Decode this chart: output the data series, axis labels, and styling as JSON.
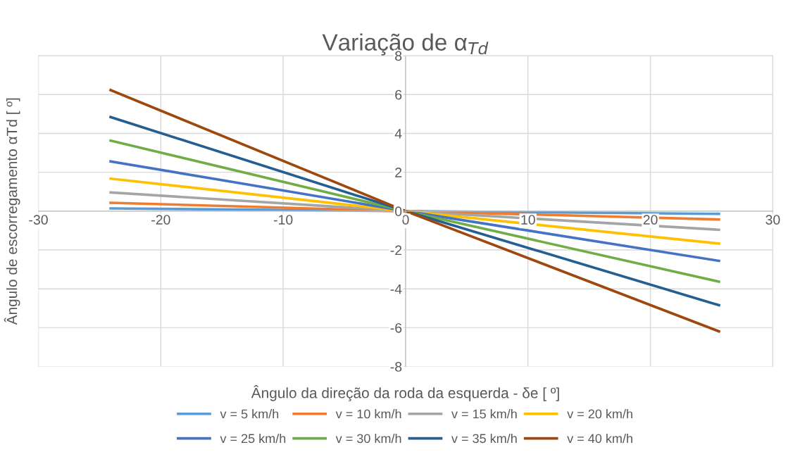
{
  "chart_data": {
    "type": "line",
    "title": "Variação de α$_{Td}$",
    "xlabel": "Ângulo da direção da roda da esquerda - δe [ º]",
    "ylabel": "Ângulo de escorregamento αTd [ º]",
    "x": [
      -24.1,
      0,
      25.6
    ],
    "series": [
      {
        "name": "v = 5 km/h",
        "color": "#5b9bd5",
        "values": [
          0.14,
          0,
          -0.14
        ]
      },
      {
        "name": "v = 10 km/h",
        "color": "#ed7d31",
        "values": [
          0.43,
          0,
          -0.43
        ]
      },
      {
        "name": "v = 15 km/h",
        "color": "#a5a5a5",
        "values": [
          0.96,
          0,
          -0.96
        ]
      },
      {
        "name": "v = 20 km/h",
        "color": "#ffc000",
        "values": [
          1.67,
          0,
          -1.67
        ]
      },
      {
        "name": "v = 25 km/h",
        "color": "#4472c4",
        "values": [
          2.56,
          0,
          -2.56
        ]
      },
      {
        "name": "v = 30 km/h",
        "color": "#70ad47",
        "values": [
          3.63,
          0,
          -3.63
        ]
      },
      {
        "name": "v = 35 km/h",
        "color": "#255e91",
        "values": [
          4.84,
          0,
          -4.84
        ]
      },
      {
        "name": "v = 40 km/h",
        "color": "#9e480e",
        "values": [
          6.23,
          0,
          -6.19
        ]
      }
    ],
    "xlim": [
      -30,
      30
    ],
    "xticks": [
      -30,
      -20,
      -10,
      0,
      10,
      20,
      30
    ],
    "ylim": [
      -8,
      8
    ],
    "yticks": [
      -8,
      -6,
      -4,
      -2,
      0,
      2,
      4,
      6,
      8
    ],
    "grid": true,
    "legend": "bottom",
    "marker": "none",
    "line_style": "solid"
  }
}
